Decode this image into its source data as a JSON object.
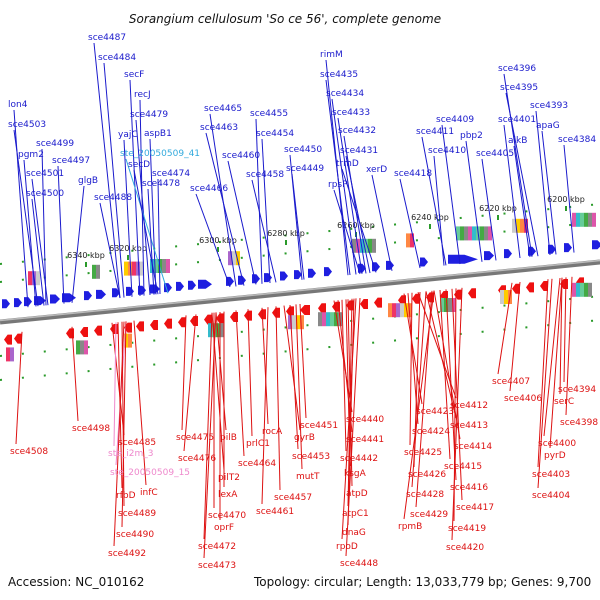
{
  "title": "Sorangium cellulosum 'So ce 56', complete genome",
  "footer": {
    "accession": "Accession: NC_010162",
    "summary": "Topology: circular; Length: 13,033,779 bp; Genes: 9,700"
  },
  "ticks": [
    "6340 kbp",
    "6320 kbp",
    "6300 kbp",
    "6280 kbp",
    "6260 kbp",
    "6240 kbp",
    "6220 kbp",
    "6200 kbp"
  ],
  "colors": {
    "forward_label": "#1a1acc",
    "reverse_label": "#dd1111",
    "forward_arrow": "#1f1fe0",
    "reverse_arrow": "#ee1111",
    "rna_forward": "#33aadd",
    "rna_reverse": "#ee88cc"
  },
  "forward_labels": [
    "sce4487",
    "sce4484",
    "secF",
    "recJ",
    "sce4479",
    "yajC",
    "aspB1",
    "ste_20050509_41",
    "secD",
    "sce4474",
    "sce4478",
    "sce4488",
    "lon4",
    "sce4503",
    "pgm2",
    "sce4499",
    "sce4501",
    "sce4497",
    "sce4500",
    "glgB",
    "sce4465",
    "sce4463",
    "sce4455",
    "sce4454",
    "sce4460",
    "sce4450",
    "sce4458",
    "sce4466",
    "sce4449",
    "rimM",
    "sce4435",
    "sce4434",
    "sce4433",
    "sce4432",
    "sce4431",
    "trmD",
    "xerD",
    "rpsP",
    "sce4396",
    "sce4395",
    "sce4393",
    "sce4409",
    "sce4411",
    "pbp2",
    "sce4401",
    "alkB",
    "apaG",
    "sce4410",
    "sce4405",
    "sce4384",
    "sce4418"
  ],
  "reverse_labels": [
    "sce4508",
    "sce4498",
    "sce4485",
    "ste_i2m_3",
    "infC",
    "ste_20050509_15",
    "rfbD",
    "sce4489",
    "sce4490",
    "sce4492",
    "sce4475",
    "pilB",
    "sce4476",
    "pilT2",
    "sce4464",
    "prlC1",
    "lexA",
    "sce4470",
    "oprF",
    "sce4472",
    "sce4473",
    "rocA",
    "gyrB",
    "sce4451",
    "sce4453",
    "mutT",
    "sce4457",
    "sce4461",
    "sce4440",
    "sce4441",
    "sce4442",
    "ksgA",
    "atpD",
    "atpC1",
    "dnaG",
    "rpoD",
    "sce4448",
    "sce4423",
    "sce4412",
    "sce4424",
    "sce4413",
    "sce4425",
    "sce4414",
    "sce4426",
    "sce4415",
    "sce4428",
    "sce4416",
    "sce4429",
    "sce4417",
    "rpmB",
    "sce4419",
    "sce4420",
    "sce4407",
    "sce4406",
    "sce4394",
    "serC",
    "sce4398",
    "sce4400",
    "pyrD",
    "sce4403",
    "sce4404"
  ]
}
